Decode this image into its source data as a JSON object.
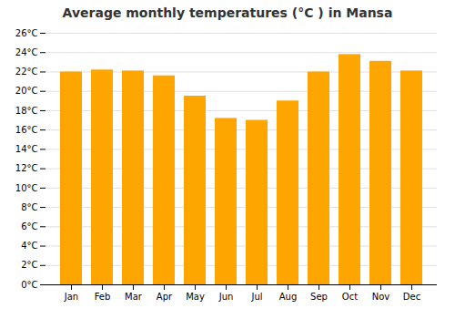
{
  "chart_data": {
    "type": "bar",
    "title": "Average monthly temperatures (°C ) in Mansa",
    "categories": [
      "Jan",
      "Feb",
      "Mar",
      "Apr",
      "May",
      "Jun",
      "Jul",
      "Aug",
      "Sep",
      "Oct",
      "Nov",
      "Dec"
    ],
    "values": [
      22.0,
      22.2,
      22.1,
      21.6,
      19.5,
      17.2,
      17.0,
      19.0,
      22.0,
      23.8,
      23.1,
      22.1
    ],
    "color": "#FFA500",
    "ylim": [
      0,
      26
    ],
    "yticks": [
      {
        "value": 0,
        "label": "0°C"
      },
      {
        "value": 2,
        "label": "2°C"
      },
      {
        "value": 4,
        "label": "4°C"
      },
      {
        "value": 6,
        "label": "6°C"
      },
      {
        "value": 8,
        "label": "8°C"
      },
      {
        "value": 10,
        "label": "10°C"
      },
      {
        "value": 12,
        "label": "12°C"
      },
      {
        "value": 14,
        "label": "14°C"
      },
      {
        "value": 16,
        "label": "16°C"
      },
      {
        "value": 18,
        "label": "18°C"
      },
      {
        "value": 20,
        "label": "20°C"
      },
      {
        "value": 22,
        "label": "22°C"
      },
      {
        "value": 24,
        "label": "24°C"
      },
      {
        "value": 26,
        "label": "26°C"
      }
    ],
    "grid": true
  }
}
